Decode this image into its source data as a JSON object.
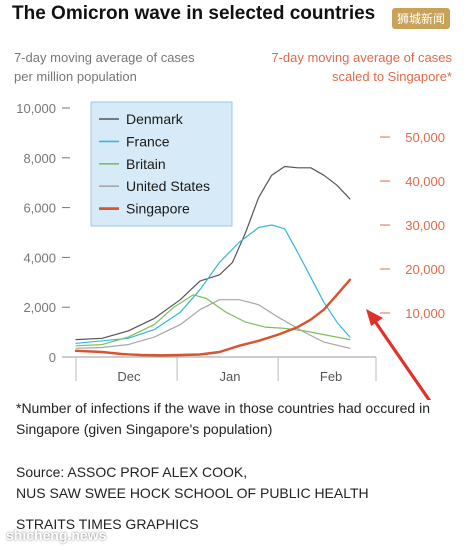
{
  "header": {
    "title": "The Omicron wave in selected countries",
    "watermark_top": "狮城新闻"
  },
  "chart_data": {
    "type": "line",
    "left_axis_title": [
      "7-day moving average of cases",
      "per million population"
    ],
    "right_axis_title": [
      "7-day moving average of cases",
      "scaled to Singapore*"
    ],
    "x_ticks": [
      {
        "label": "Dec",
        "day": 15
      },
      {
        "label": "Jan",
        "day": 46
      },
      {
        "label": "Feb",
        "day": 77
      }
    ],
    "y_left_ticks": [
      0,
      2000,
      4000,
      6000,
      8000,
      10000
    ],
    "y_left_tick_labels": [
      "0",
      "2,000",
      "4,000",
      "6,000",
      "8,000",
      "10,000"
    ],
    "y_right_ticks": [
      10000,
      20000,
      30000,
      40000,
      50000
    ],
    "y_right_tick_labels": [
      "10,000",
      "20,000",
      "30,000",
      "40,000",
      "50,000"
    ],
    "ylim_left": [
      0,
      10000
    ],
    "ylim_right": [
      0,
      56600
    ],
    "xlim_days": [
      0,
      92
    ],
    "legend_position": "top-left",
    "colors": {
      "left_axis": "#777777",
      "right_axis": "#e06a4a",
      "legend_bg": "#d6ebf7",
      "legend_border": "#9cc9e6",
      "arrow": "#e0312a"
    },
    "series": [
      {
        "name": "Denmark",
        "color": "#555555",
        "width": 1.2,
        "axis": "left",
        "points": [
          [
            0,
            700
          ],
          [
            8,
            750
          ],
          [
            16,
            1050
          ],
          [
            24,
            1550
          ],
          [
            32,
            2300
          ],
          [
            38,
            3050
          ],
          [
            44,
            3300
          ],
          [
            48,
            3800
          ],
          [
            52,
            5000
          ],
          [
            56,
            6400
          ],
          [
            60,
            7300
          ],
          [
            64,
            7650
          ],
          [
            68,
            7600
          ],
          [
            72,
            7600
          ],
          [
            76,
            7300
          ],
          [
            80,
            6900
          ],
          [
            84,
            6350
          ]
        ]
      },
      {
        "name": "France",
        "color": "#33b8e0",
        "width": 1.2,
        "axis": "left",
        "points": [
          [
            0,
            550
          ],
          [
            8,
            650
          ],
          [
            16,
            750
          ],
          [
            24,
            1100
          ],
          [
            32,
            1800
          ],
          [
            38,
            2700
          ],
          [
            44,
            3800
          ],
          [
            50,
            4600
          ],
          [
            56,
            5200
          ],
          [
            60,
            5300
          ],
          [
            64,
            5150
          ],
          [
            68,
            4200
          ],
          [
            72,
            3200
          ],
          [
            76,
            2200
          ],
          [
            80,
            1400
          ],
          [
            84,
            800
          ]
        ]
      },
      {
        "name": "Britain",
        "color": "#7cbf5a",
        "width": 1.2,
        "axis": "left",
        "points": [
          [
            0,
            450
          ],
          [
            8,
            500
          ],
          [
            16,
            800
          ],
          [
            24,
            1300
          ],
          [
            30,
            2000
          ],
          [
            36,
            2500
          ],
          [
            40,
            2350
          ],
          [
            46,
            1800
          ],
          [
            52,
            1400
          ],
          [
            58,
            1200
          ],
          [
            64,
            1150
          ],
          [
            70,
            1050
          ],
          [
            76,
            900
          ],
          [
            84,
            700
          ]
        ]
      },
      {
        "name": "United States",
        "color": "#a6a6a6",
        "width": 1.2,
        "axis": "left",
        "points": [
          [
            0,
            350
          ],
          [
            8,
            380
          ],
          [
            16,
            500
          ],
          [
            24,
            800
          ],
          [
            32,
            1300
          ],
          [
            38,
            1900
          ],
          [
            44,
            2300
          ],
          [
            50,
            2300
          ],
          [
            56,
            2100
          ],
          [
            62,
            1600
          ],
          [
            70,
            1000
          ],
          [
            76,
            600
          ],
          [
            84,
            350
          ]
        ]
      },
      {
        "name": "Singapore",
        "color": "#d9532e",
        "width": 2.4,
        "axis": "left",
        "points": [
          [
            0,
            250
          ],
          [
            8,
            200
          ],
          [
            14,
            120
          ],
          [
            20,
            80
          ],
          [
            26,
            70
          ],
          [
            32,
            80
          ],
          [
            38,
            100
          ],
          [
            44,
            200
          ],
          [
            50,
            450
          ],
          [
            56,
            650
          ],
          [
            62,
            900
          ],
          [
            68,
            1200
          ],
          [
            72,
            1500
          ],
          [
            76,
            1900
          ],
          [
            80,
            2500
          ],
          [
            84,
            3100
          ]
        ]
      }
    ]
  },
  "footnote": "*Number of infections if the wave in those countries had occured in Singapore (given Singapore's population)",
  "source": {
    "line1": "Source: ASSOC PROF ALEX COOK,",
    "line2": "NUS SAW SWEE HOCK SCHOOL OF PUBLIC HEALTH"
  },
  "credit": "STRAITS TIMES GRAPHICS",
  "watermark_bottom": "shicheng.news"
}
